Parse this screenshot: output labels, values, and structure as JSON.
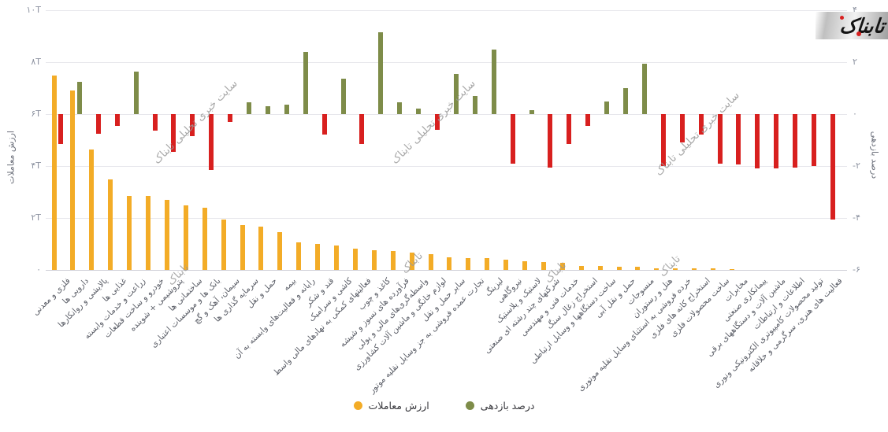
{
  "logo": {
    "text": "تابناک"
  },
  "watermark": {
    "full_text": "سایت خبری تحلیلی تابناک",
    "short_text": "تابناک"
  },
  "axes": {
    "left_title": "ارزش معاملات",
    "right_title": "درصد بازدهی",
    "left_ticks": [
      "۱۰T",
      "۸T",
      "۶T",
      "۴T",
      "۲T",
      "۰"
    ],
    "right_ticks": [
      "۴",
      "۲",
      "۰",
      "-۲",
      "-۴",
      "-۶"
    ]
  },
  "legend": {
    "items": [
      {
        "label": "ارزش معاملات",
        "color": "#F3AC27"
      },
      {
        "label": "درصد بازدهی",
        "color": "#7E8C49"
      }
    ]
  },
  "colors": {
    "value_bar": "#F3AC27",
    "return_positive": "#7E8C49",
    "return_negative": "#D8201F",
    "gridline": "#e7e7ec",
    "axis_line": "#cfcfd6",
    "tick_text": "#8d93a1",
    "label_text": "#5d6069",
    "watermark": "#9a9a9a"
  },
  "chart_data": {
    "type": "bar",
    "dual_axis": true,
    "grid": true,
    "legend_position": "bottom-center",
    "left_axis": {
      "label": "ارزش معاملات",
      "range": [
        0,
        10
      ],
      "unit": "T",
      "ticks": [
        0,
        2,
        4,
        6,
        8,
        10
      ]
    },
    "right_axis": {
      "label": "درصد بازدهی",
      "range": [
        -6,
        4
      ],
      "unit": "%",
      "ticks": [
        -6,
        -4,
        -2,
        0,
        2,
        4
      ]
    },
    "categories": [
      "فلزی و معدنی",
      "دارویی ها",
      "پالایشی و روانکارها",
      "غذایی ها",
      "زراعت و خدمات وابسته",
      "خودرو و ساخت قطعات",
      "پتروشیمی + شوینده",
      "ساختمانی ها",
      "بانک ها و موسسات اعتباری",
      "سیمان، آهک و گچ",
      "سرمایه گذاری ها",
      "حمل و نقل",
      "بیمه",
      "رایانه و فعالیت‌های وابسته به آن",
      "قند و شکر",
      "کاشی و سرامیک",
      "فعالیتهای کمکی به نهادهای مالی واسط",
      "کاغذ و چوب",
      "فرآورده های نسوز و شیشه",
      "واسطه‌گری‌های مالی و پولی",
      "لوازم خانگی و ماشین آلات کشاورزی",
      "سایر حمل و نقل",
      "تجارت عمده فروشی به جز وسایل نقلیه موتور",
      "لیزینگ",
      "نیروگاهی",
      "لاستیک و پلاستیک",
      "شرکتهای چند رشته ای صنعتی",
      "خدمات فنی و مهندسی",
      "استخراج زغال سنگ",
      "ساخت دستگاهها و وسایل ارتباطی",
      "حمل و نقل آبی",
      "منسوجات",
      "هتل و رستوران",
      "خرده فروشی به استثنای وسایل نقلیه موتوری",
      "استخراج کانه های فلزی",
      "ساخت محصولات فلزی",
      "مخابرات",
      "پیمانکاری صنعتی",
      "ماشین آلات و دستگاههای برقی",
      "اطلاعات و ارتباطات",
      "تولید محصولات کامپیوتری الکترونیکی ونوری",
      "فعالیت های هنری، سرگرمی و خلاقانه"
    ],
    "series": [
      {
        "name": "ارزش معاملات",
        "axis": "left",
        "unit": "T",
        "color": "#F3AC27",
        "values": [
          7.5,
          6.9,
          4.65,
          3.5,
          2.85,
          2.85,
          2.7,
          2.5,
          2.4,
          1.95,
          1.73,
          1.67,
          1.45,
          1.06,
          1.0,
          0.94,
          0.82,
          0.76,
          0.74,
          0.68,
          0.61,
          0.48,
          0.45,
          0.45,
          0.39,
          0.33,
          0.3,
          0.27,
          0.15,
          0.15,
          0.12,
          0.12,
          0.06,
          0.05,
          0.05,
          0.05,
          0.04,
          0.01,
          0.01,
          0.01,
          0.01,
          0.01
        ]
      },
      {
        "name": "درصد بازدهی",
        "axis": "right",
        "unit": "%",
        "positive_color": "#7E8C49",
        "negative_color": "#D8201F",
        "values": [
          -1.15,
          1.25,
          -0.75,
          -0.45,
          1.65,
          -0.65,
          -1.45,
          -0.85,
          -2.15,
          -0.3,
          0.45,
          0.3,
          0.35,
          2.4,
          -0.8,
          1.35,
          -1.15,
          3.15,
          0.45,
          0.2,
          -0.6,
          1.55,
          0.7,
          2.5,
          -1.9,
          0.15,
          -2.05,
          -1.15,
          -0.45,
          0.5,
          1.0,
          1.95,
          -2.0,
          -1.1,
          -0.8,
          -1.9,
          -1.95,
          -2.1,
          -2.1,
          -2.05,
          -2.0,
          -4.05
        ]
      }
    ]
  }
}
